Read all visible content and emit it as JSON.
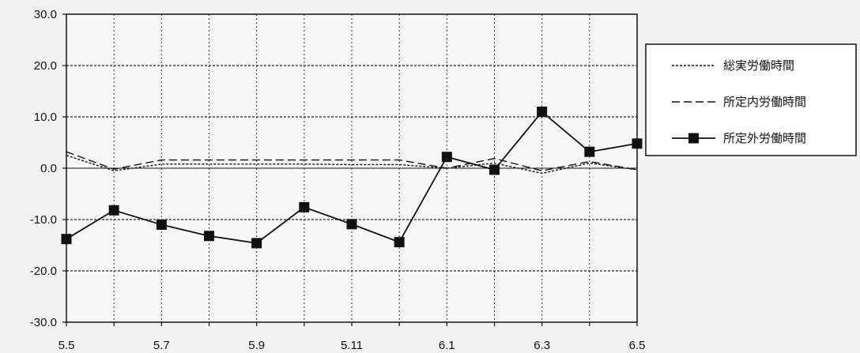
{
  "chart_data": {
    "type": "line",
    "x": [
      "5.5",
      "5.6",
      "5.7",
      "5.8",
      "5.9",
      "5.10",
      "5.11",
      "5.12",
      "6.1",
      "6.2",
      "6.3",
      "6.4",
      "6.5"
    ],
    "x_tick_labels": [
      "5.5",
      "5.7",
      "5.9",
      "5.11",
      "6.1",
      "6.3",
      "6.5"
    ],
    "ylim": [
      -30,
      30
    ],
    "y_ticks": [
      30,
      20,
      10,
      0,
      -10,
      -20,
      -30
    ],
    "y_tick_labels": [
      "30.0",
      "20.0",
      "10.0",
      "0.0",
      "-10.0",
      "-20.0",
      "-30.0"
    ],
    "grid": true,
    "legend_position": "right",
    "series": [
      {
        "name": "総実労働時間",
        "style": "dotted",
        "color": "#111111",
        "values": [
          2.5,
          -0.5,
          0.8,
          0.8,
          0.8,
          0.8,
          0.7,
          0.7,
          0.0,
          1.0,
          -1.0,
          1.0,
          -0.3
        ]
      },
      {
        "name": "所定内労働時間",
        "style": "dashed",
        "color": "#111111",
        "values": [
          3.2,
          -0.2,
          1.6,
          1.6,
          1.6,
          1.6,
          1.6,
          1.6,
          0.0,
          1.9,
          -0.5,
          1.3,
          -0.3
        ]
      },
      {
        "name": "所定外労働時間",
        "style": "solid-square",
        "color": "#111111",
        "values": [
          -13.8,
          -8.2,
          -11.0,
          -13.2,
          -14.6,
          -7.6,
          -10.9,
          -14.4,
          2.2,
          -0.3,
          11.0,
          3.2,
          4.8
        ]
      }
    ]
  }
}
